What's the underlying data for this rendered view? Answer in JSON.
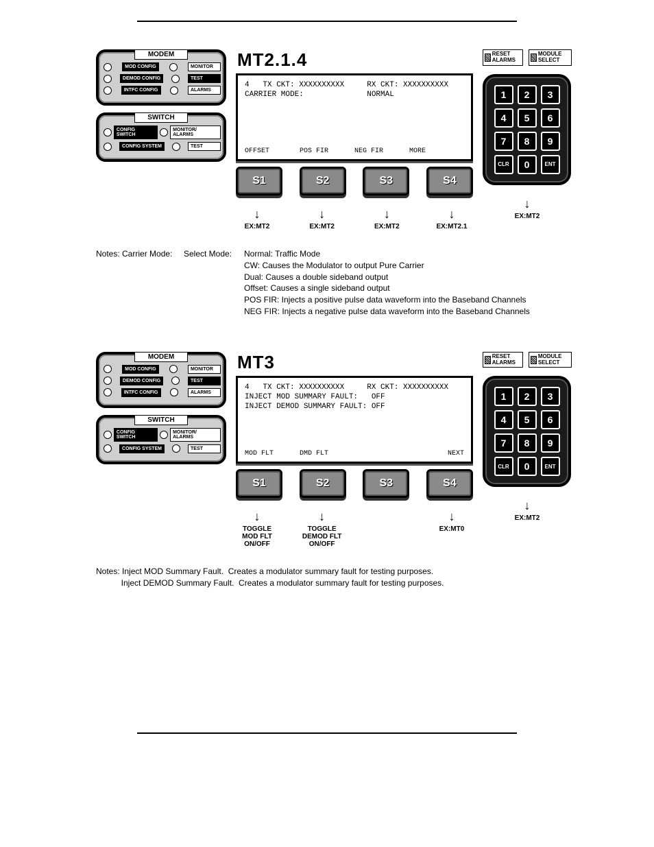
{
  "section1": {
    "title": "MT2.1.4",
    "modem_panel": {
      "title": "MODEM",
      "rows": [
        {
          "btn1": "MOD\nCONFIG",
          "btn2": "MONITOR",
          "dark2": false
        },
        {
          "btn1": "DEMOD\nCONFIG",
          "btn2": "TEST",
          "dark2": true
        },
        {
          "btn1": "INTFC\nCONFIG",
          "btn2": "ALARMS",
          "dark2": false
        }
      ]
    },
    "switch_panel": {
      "title": "SWITCH",
      "rows": [
        {
          "btn1": "CONFIG\nSWITCH",
          "btn2": "MONITOR/\nALARMS"
        },
        {
          "btn1": "CONFIG\nSYSTEM",
          "btn2": "TEST"
        }
      ]
    },
    "lcd_lines": [
      "4   TX CKT: XXXXXXXXXX     RX CKT: XXXXXXXXXX",
      "CARRIER MODE:              NORMAL"
    ],
    "lcd_soft_labels": [
      "OFFSET",
      "POS FIR",
      "NEG FIR",
      "MORE"
    ],
    "softkeys": [
      "S1",
      "S2",
      "S3",
      "S4"
    ],
    "ex_labels": [
      "EX:MT2",
      "EX:MT2",
      "EX:MT2",
      "EX:MT2.1"
    ],
    "top_buttons": [
      "RESET\nALARMS",
      "MODULE\nSELECT"
    ],
    "keypad": [
      "1",
      "2",
      "3",
      "4",
      "5",
      "6",
      "7",
      "8",
      "9",
      "CLR",
      "0",
      "ENT"
    ],
    "right_ex": [
      "EX:MT2"
    ]
  },
  "notes1": {
    "col_a": "Notes:  Carrier Mode:",
    "col_b": "Select Mode:",
    "lines": [
      "Normal: Traffic Mode",
      "CW: Causes the Modulator to output Pure Carrier",
      "Dual: Causes a double sideband output",
      "Offset: Causes a single sideband output",
      "POS FIR: Injects a positive pulse data waveform into the Baseband Channels",
      "NEG FIR: Injects a negative pulse data waveform into the Baseband Channels"
    ]
  },
  "section2": {
    "title": "MT3",
    "lcd_lines": [
      "4   TX CKT: XXXXXXXXXX     RX CKT: XXXXXXXXXX",
      "INJECT MOD SUMMARY FAULT:   OFF",
      "INJECT DEMOD SUMMARY FAULT: OFF"
    ],
    "lcd_soft_labels": [
      "MOD FLT",
      "DMD FLT",
      "",
      "NEXT"
    ],
    "softkeys": [
      "S1",
      "S2",
      "S3",
      "S4"
    ],
    "ex_labels": [
      "TOGGLE\nMOD FLT\nON/OFF",
      "TOGGLE\nDEMOD FLT\nON/OFF",
      "",
      "EX:MT0"
    ],
    "right_ex": [
      "EX:MT2"
    ]
  },
  "notes2": {
    "lines": [
      "Notes: Inject MOD Summary Fault.  Creates a modulator summary fault for testing purposes.",
      "           Inject DEMOD Summary Fault.  Creates a modulator summary fault for testing purposes."
    ]
  }
}
